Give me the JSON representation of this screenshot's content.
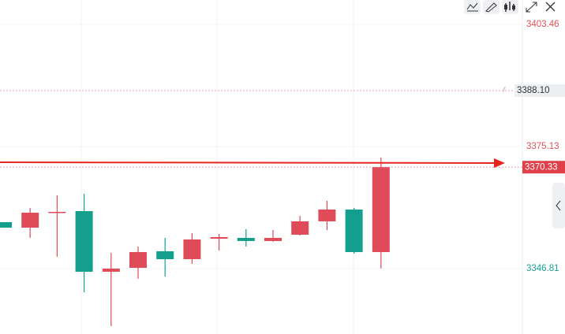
{
  "chart_data": {
    "type": "candlestick",
    "ylim": [
      3331.61,
      3409.13
    ],
    "yticks": [
      3403.46,
      3375.13,
      3346.81
    ],
    "ytick_colors": [
      "#e0505a",
      "#e0505a",
      "#16a38f"
    ],
    "grid": true,
    "up_color": "#e04b5a",
    "down_color": "#139e8e",
    "open": [
      3357.57,
      3356.29,
      3359.77,
      3360.13,
      3346.06,
      3346.97,
      3350.81,
      3348.98,
      3353.73,
      3353.92,
      3353.19,
      3354.65,
      3357.76,
      3360.5,
      3350.63
    ],
    "high": [
      3357.57,
      3360.86,
      3363.79,
      3364.15,
      3350.44,
      3351.91,
      3353.92,
      3355.01,
      3354.83,
      3355.93,
      3355.75,
      3359.04,
      3362.51,
      3360.86,
      3372.56
    ],
    "low": [
      3356.29,
      3353.92,
      3349.53,
      3341.3,
      3333.44,
      3344.41,
      3344.96,
      3347.88,
      3350.99,
      3351.91,
      3353.0,
      3354.47,
      3355.75,
      3350.26,
      3346.81
    ],
    "close": [
      3356.29,
      3359.77,
      3359.95,
      3346.06,
      3346.79,
      3350.63,
      3348.98,
      3353.55,
      3354.1,
      3353.19,
      3353.92,
      3357.76,
      3360.5,
      3350.63,
      3370.33
    ],
    "price_lines": [
      {
        "value": 3388.1,
        "label": "3388.10",
        "color": "#e8a0a6",
        "box": "#eceff2",
        "text_color": "#333333"
      },
      {
        "value": 3370.33,
        "color": "#e8a0a6",
        "box": "#e0404a",
        "text_color": "#ffffff"
      }
    ]
  }
}
